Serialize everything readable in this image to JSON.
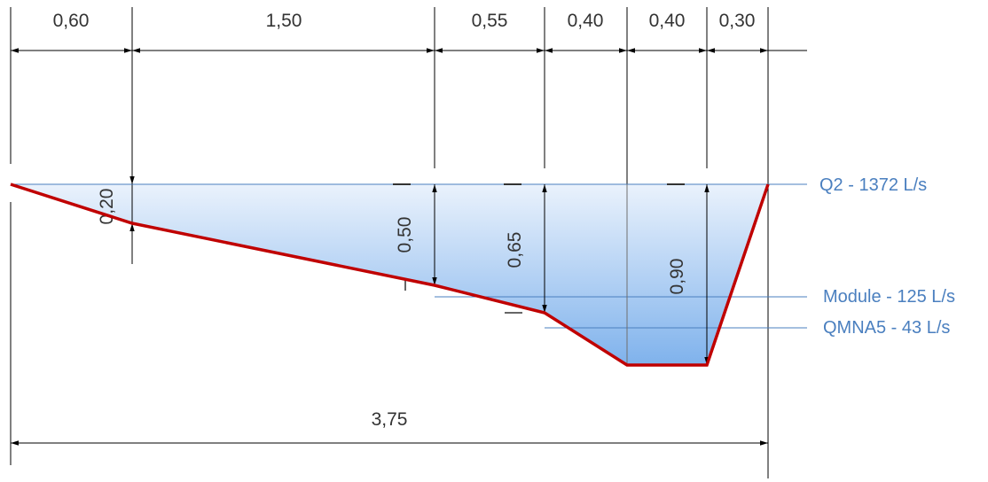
{
  "colors": {
    "water_top": "#eaf2fc",
    "water_bottom": "#7fb2ec",
    "profile_line": "#c00000",
    "level_line": "#4a7fbf",
    "level_text": "#4a7fbf",
    "dim_line": "#000000"
  },
  "top_dimensions": [
    "0,60",
    "1,50",
    "0,55",
    "0,40",
    "0,40",
    "0,30"
  ],
  "total_width": "3,75",
  "depths": {
    "d1": "0,20",
    "d2": "0,50",
    "d3": "0,65",
    "d4": "0,90"
  },
  "water_levels": [
    {
      "label": "Q2 - 1372 L/s"
    },
    {
      "label": "Module - 125 L/s"
    },
    {
      "label": "QMNA5 - 43 L/s"
    }
  ]
}
